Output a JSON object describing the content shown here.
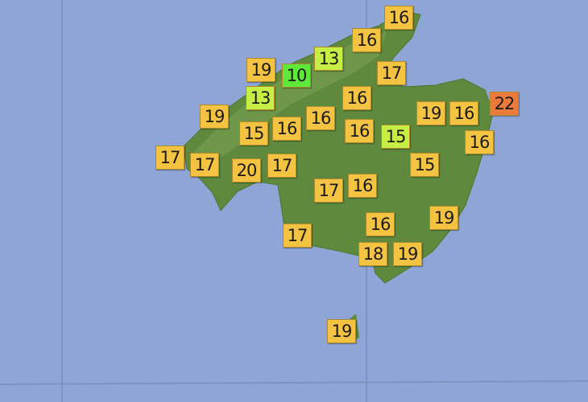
{
  "map": {
    "sea_color": "#8ea5d6",
    "land_color": "#5f8a3e",
    "colors": {
      "t10": "#5ee83a",
      "t13": "#c6ee44",
      "t15": "#c6ee44",
      "default": "#f5c342",
      "t22": "#ec7a3a"
    },
    "temperatures": [
      "16",
      "16",
      "13",
      "19",
      "10",
      "17",
      "13",
      "16",
      "19",
      "19",
      "16",
      "22",
      "15",
      "16",
      "16",
      "16",
      "15",
      "16",
      "17",
      "17",
      "20",
      "17",
      "15",
      "17",
      "16",
      "19",
      "16",
      "17",
      "18",
      "19",
      "19"
    ]
  }
}
